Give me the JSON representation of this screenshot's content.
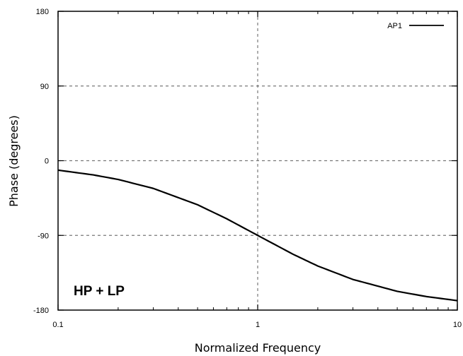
{
  "chart_data": {
    "type": "line",
    "xlabel": "Normalized Frequency",
    "ylabel": "Phase (degrees)",
    "x_scale": "log",
    "xlim": [
      0.1,
      10
    ],
    "ylim": [
      -180,
      180
    ],
    "x_ticks": [
      0.1,
      1,
      10
    ],
    "x_tick_labels": [
      "0.1",
      "1",
      "10"
    ],
    "y_ticks": [
      180,
      90,
      0,
      -90,
      -180
    ],
    "y_tick_labels": [
      "180",
      "90",
      "0",
      "-90",
      "-180"
    ],
    "grid": "dashed, at major ticks",
    "legend": "top-right",
    "annotation": "HP + LP",
    "series": [
      {
        "name": "AP1",
        "color": "#000000",
        "x": [
          0.1,
          0.15,
          0.2,
          0.3,
          0.5,
          0.7,
          1,
          1.5,
          2,
          3,
          5,
          7,
          10
        ],
        "y": [
          -11.4,
          -17.1,
          -22.6,
          -33.4,
          -53.1,
          -70,
          -90,
          -112.6,
          -126.9,
          -143.1,
          -157.4,
          -163.7,
          -168.6
        ]
      }
    ]
  }
}
